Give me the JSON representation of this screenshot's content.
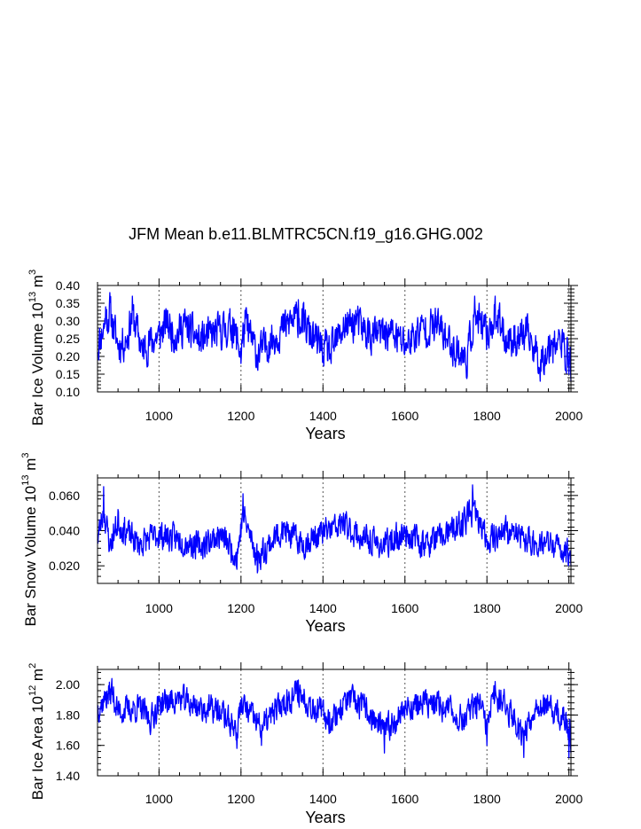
{
  "figure_title": "JFM Mean b.e11.BLMTRC5CN.f19_g16.GHG.002",
  "chart_data": [
    {
      "type": "line",
      "ylabel_main": "Bar Ice Volume 10",
      "ylabel_exp": "13",
      "ylabel_unit": "m",
      "ylabel_unit_exp": "3",
      "xlabel": "Years",
      "xlim": [
        850,
        2005
      ],
      "ylim": [
        0.1,
        0.4
      ],
      "xticks": [
        1000,
        1200,
        1400,
        1600,
        1800,
        2000
      ],
      "xtick_labels": [
        "1000",
        "1200",
        "1400",
        "1600",
        "1800",
        "2000"
      ],
      "yticks": [
        0.1,
        0.15,
        0.2,
        0.25,
        0.3,
        0.35,
        0.4
      ],
      "ytick_labels": [
        "0.10",
        "0.15",
        "0.20",
        "0.25",
        "0.30",
        "0.35",
        "0.40"
      ],
      "gridlines_x": [
        1000,
        1200,
        1400,
        1600,
        1800,
        2000
      ],
      "series": [
        {
          "name": "Bar Ice Volume",
          "color": "#0000ff",
          "x_start": 850,
          "x_end": 2005,
          "mean": 0.25,
          "amplitude": 0.085,
          "seed": 11,
          "points": [
            [
              850,
              0.21
            ],
            [
              870,
              0.34
            ],
            [
              880,
              0.38
            ],
            [
              900,
              0.22
            ],
            [
              920,
              0.24
            ],
            [
              935,
              0.37
            ],
            [
              960,
              0.2
            ],
            [
              1000,
              0.27
            ],
            [
              1020,
              0.33
            ],
            [
              1040,
              0.26
            ],
            [
              1060,
              0.32
            ],
            [
              1100,
              0.24
            ],
            [
              1150,
              0.29
            ],
            [
              1180,
              0.31
            ],
            [
              1200,
              0.18
            ],
            [
              1210,
              0.33
            ],
            [
              1240,
              0.17
            ],
            [
              1300,
              0.3
            ],
            [
              1320,
              0.33
            ],
            [
              1340,
              0.36
            ],
            [
              1380,
              0.24
            ],
            [
              1400,
              0.2
            ],
            [
              1420,
              0.18
            ],
            [
              1450,
              0.31
            ],
            [
              1480,
              0.33
            ],
            [
              1520,
              0.26
            ],
            [
              1560,
              0.29
            ],
            [
              1600,
              0.22
            ],
            [
              1640,
              0.3
            ],
            [
              1680,
              0.32
            ],
            [
              1700,
              0.25
            ],
            [
              1750,
              0.14
            ],
            [
              1770,
              0.37
            ],
            [
              1800,
              0.26
            ],
            [
              1820,
              0.37
            ],
            [
              1850,
              0.24
            ],
            [
              1900,
              0.27
            ],
            [
              1930,
              0.13
            ],
            [
              1960,
              0.24
            ],
            [
              1980,
              0.22
            ],
            [
              2000,
              0.15
            ],
            [
              2005,
              0.13
            ]
          ]
        }
      ]
    },
    {
      "type": "line",
      "ylabel_main": "Bar Snow Volume 10",
      "ylabel_exp": "13",
      "ylabel_unit": "m",
      "ylabel_unit_exp": "3",
      "xlabel": "Years",
      "xlim": [
        850,
        2005
      ],
      "ylim": [
        0.01,
        0.07
      ],
      "xticks": [
        1000,
        1200,
        1400,
        1600,
        1800,
        2000
      ],
      "xtick_labels": [
        "1000",
        "1200",
        "1400",
        "1600",
        "1800",
        "2000"
      ],
      "yticks": [
        0.02,
        0.04,
        0.06
      ],
      "ytick_labels": [
        "0.020",
        "0.040",
        "0.060"
      ],
      "gridlines_x": [
        1000,
        1200,
        1400,
        1600,
        1800,
        2000
      ],
      "series": [
        {
          "name": "Bar Snow Volume",
          "color": "#0000ff",
          "x_start": 850,
          "x_end": 2005,
          "mean": 0.035,
          "amplitude": 0.013,
          "seed": 23,
          "points": [
            [
              850,
              0.035
            ],
            [
              865,
              0.065
            ],
            [
              880,
              0.03
            ],
            [
              900,
              0.052
            ],
            [
              950,
              0.03
            ],
            [
              1000,
              0.04
            ],
            [
              1050,
              0.035
            ],
            [
              1100,
              0.028
            ],
            [
              1150,
              0.04
            ],
            [
              1190,
              0.018
            ],
            [
              1205,
              0.061
            ],
            [
              1240,
              0.016
            ],
            [
              1300,
              0.045
            ],
            [
              1350,
              0.03
            ],
            [
              1400,
              0.042
            ],
            [
              1450,
              0.05
            ],
            [
              1500,
              0.035
            ],
            [
              1550,
              0.028
            ],
            [
              1600,
              0.042
            ],
            [
              1650,
              0.03
            ],
            [
              1700,
              0.04
            ],
            [
              1740,
              0.05
            ],
            [
              1765,
              0.066
            ],
            [
              1800,
              0.035
            ],
            [
              1850,
              0.045
            ],
            [
              1900,
              0.033
            ],
            [
              1950,
              0.03
            ],
            [
              1980,
              0.025
            ],
            [
              2005,
              0.02
            ]
          ]
        }
      ]
    },
    {
      "type": "line",
      "ylabel_main": "Bar Ice Area 10",
      "ylabel_exp": "12",
      "ylabel_unit": "m",
      "ylabel_unit_exp": "2",
      "xlabel": "Years",
      "xlim": [
        850,
        2005
      ],
      "ylim": [
        1.4,
        2.1
      ],
      "xticks": [
        1000,
        1200,
        1400,
        1600,
        1800,
        2000
      ],
      "xtick_labels": [
        "1000",
        "1200",
        "1400",
        "1600",
        "1800",
        "2000"
      ],
      "yticks": [
        1.4,
        1.6,
        1.8,
        2.0
      ],
      "ytick_labels": [
        "1.40",
        "1.60",
        "1.80",
        "2.00"
      ],
      "gridlines_x": [
        1000,
        1200,
        1400,
        1600,
        1800,
        2000
      ],
      "series": [
        {
          "name": "Bar Ice Area",
          "color": "#0000ff",
          "x_start": 850,
          "x_end": 2005,
          "mean": 1.85,
          "amplitude": 0.15,
          "seed": 37,
          "points": [
            [
              850,
              1.85
            ],
            [
              870,
              1.95
            ],
            [
              885,
              2.04
            ],
            [
              900,
              1.8
            ],
            [
              950,
              1.85
            ],
            [
              980,
              1.7
            ],
            [
              1000,
              1.9
            ],
            [
              1050,
              1.95
            ],
            [
              1100,
              1.85
            ],
            [
              1150,
              1.8
            ],
            [
              1190,
              1.58
            ],
            [
              1200,
              1.9
            ],
            [
              1250,
              1.6
            ],
            [
              1300,
              1.9
            ],
            [
              1340,
              2.03
            ],
            [
              1380,
              1.85
            ],
            [
              1420,
              1.7
            ],
            [
              1460,
              1.95
            ],
            [
              1500,
              1.85
            ],
            [
              1550,
              1.55
            ],
            [
              1600,
              1.85
            ],
            [
              1650,
              1.9
            ],
            [
              1700,
              1.85
            ],
            [
              1740,
              1.7
            ],
            [
              1780,
              1.9
            ],
            [
              1800,
              1.6
            ],
            [
              1820,
              2.02
            ],
            [
              1850,
              1.85
            ],
            [
              1890,
              1.52
            ],
            [
              1920,
              1.9
            ],
            [
              1960,
              1.8
            ],
            [
              1990,
              1.7
            ],
            [
              2000,
              1.52
            ],
            [
              2005,
              1.55
            ]
          ]
        }
      ]
    }
  ]
}
